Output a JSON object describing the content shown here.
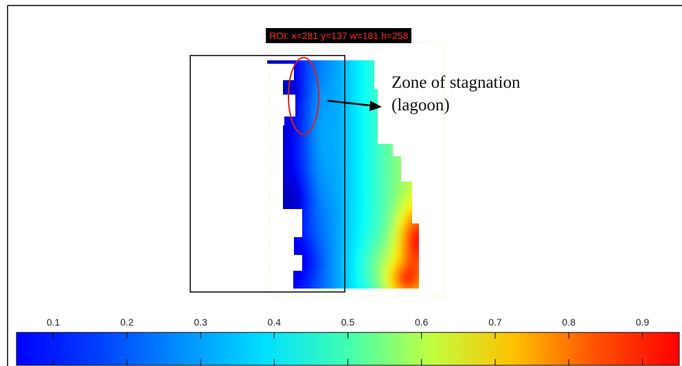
{
  "chart_data": {
    "type": "heatmap",
    "title": "",
    "xlabel": "",
    "ylabel": "",
    "colormap": "jet",
    "colorbar": {
      "position": "bottom",
      "range": [
        0.05,
        0.95
      ],
      "ticks": [
        "0.1",
        "0.2",
        "0.3",
        "0.4",
        "0.5",
        "0.6",
        "0.7",
        "0.8",
        "0.9"
      ],
      "tick_values": [
        0.1,
        0.2,
        0.3,
        0.4,
        0.5,
        0.6,
        0.7,
        0.8,
        0.9
      ]
    },
    "roi_label": "ROI: x=281 y=137 w=181 h=258",
    "annotation": {
      "line1": "Zone of stagnation",
      "line2": "(lagoon)"
    },
    "grid": false,
    "value_range_depicted": [
      0.1,
      0.85
    ],
    "colors": {
      "roi_label_text": "#ff2a2a",
      "roi_label_background": "#000000",
      "highlight_ellipse": "#d42020",
      "frame": "#000000"
    }
  }
}
